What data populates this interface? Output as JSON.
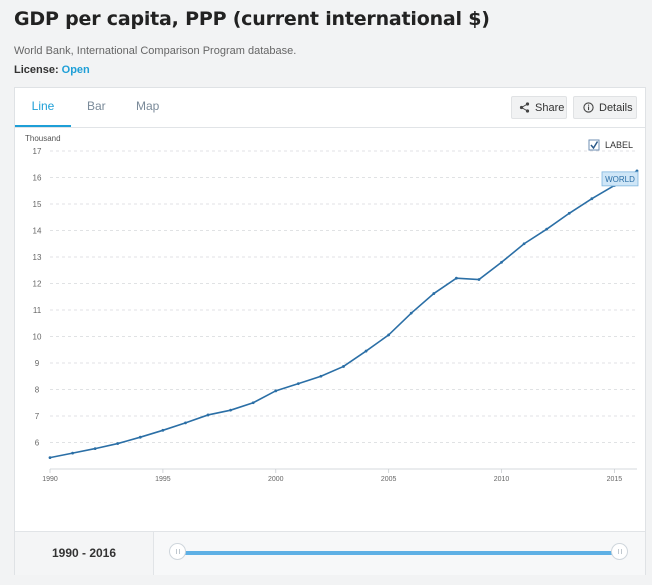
{
  "page": {
    "title": "GDP per capita, PPP (current international $)",
    "source": "World Bank, International Comparison Program database.",
    "license_label": "License:",
    "license_value": "Open"
  },
  "tabs": [
    {
      "label": "Line",
      "active": true
    },
    {
      "label": "Bar",
      "active": false
    },
    {
      "label": "Map",
      "active": false
    }
  ],
  "actions": {
    "share": "Share",
    "details": "Details"
  },
  "colors": {
    "accent": "#1e9fd7",
    "line": "#2b6fa6",
    "slider": "#5eb0e5"
  },
  "chart_data": {
    "type": "line",
    "unit_label": "Thousand",
    "label_toggle": "LABEL",
    "label_checked": true,
    "ylim": [
      5,
      17
    ],
    "yticks": [
      6,
      7,
      8,
      9,
      10,
      11,
      12,
      13,
      14,
      15,
      16,
      17
    ],
    "xlim": [
      1990,
      2016
    ],
    "xticks": [
      1990,
      1995,
      2000,
      2005,
      2010,
      2015
    ],
    "grid": true,
    "series": [
      {
        "name": "WORLD",
        "x": [
          1990,
          1991,
          1992,
          1993,
          1994,
          1995,
          1996,
          1997,
          1998,
          1999,
          2000,
          2001,
          2002,
          2003,
          2004,
          2005,
          2006,
          2007,
          2008,
          2009,
          2010,
          2011,
          2012,
          2013,
          2014,
          2015,
          2016
        ],
        "values": [
          5.43,
          5.6,
          5.77,
          5.96,
          6.2,
          6.46,
          6.74,
          7.04,
          7.22,
          7.5,
          7.95,
          8.22,
          8.5,
          8.87,
          9.45,
          10.06,
          10.88,
          11.62,
          12.2,
          12.15,
          12.8,
          13.5,
          14.05,
          14.65,
          15.2,
          15.7,
          16.25
        ]
      }
    ]
  },
  "footer": {
    "range": "1990 - 2016"
  }
}
